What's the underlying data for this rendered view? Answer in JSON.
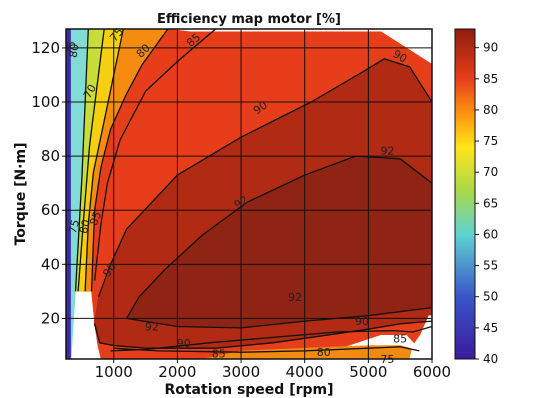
{
  "chart_data": {
    "type": "heatmap",
    "title": "Efficiency map motor [%]",
    "xlabel": "Rotation speed [rpm]",
    "ylabel": "Torque [N·m]",
    "xlim": [
      250,
      6000
    ],
    "ylim": [
      5,
      127
    ],
    "x_ticks": [
      1000,
      2000,
      3000,
      4000,
      5000,
      6000
    ],
    "y_ticks": [
      20,
      40,
      60,
      80,
      100,
      120
    ],
    "grid": true,
    "colorbar": {
      "range": [
        40,
        93
      ],
      "ticks": [
        40,
        45,
        50,
        55,
        60,
        65,
        70,
        75,
        80,
        85,
        90
      ],
      "stops": [
        {
          "value": 40,
          "color": "#3b1a9c"
        },
        {
          "value": 50,
          "color": "#3a55c8"
        },
        {
          "value": 60,
          "color": "#5fd3d2"
        },
        {
          "value": 67,
          "color": "#a9d84a"
        },
        {
          "value": 74,
          "color": "#ffe61a"
        },
        {
          "value": 79,
          "color": "#ff9a10"
        },
        {
          "value": 85,
          "color": "#e63e1a"
        },
        {
          "value": 93,
          "color": "#8f1d10"
        }
      ]
    },
    "regions": [
      {
        "level": 45,
        "color": "#3d2aa6",
        "points": [
          [
            250,
            5
          ],
          [
            250,
            127
          ],
          [
            330,
            127
          ],
          [
            330,
            5
          ]
        ]
      },
      {
        "level": 62,
        "color": "#82dcd6",
        "points": [
          [
            330,
            5
          ],
          [
            330,
            127
          ],
          [
            600,
            127
          ],
          [
            500,
            72
          ],
          [
            400,
            30
          ]
        ]
      },
      {
        "level": 70,
        "color": "#c8dd3a",
        "points": [
          [
            400,
            30
          ],
          [
            500,
            72
          ],
          [
            600,
            127
          ],
          [
            850,
            127
          ],
          [
            620,
            84
          ],
          [
            520,
            55
          ],
          [
            440,
            30
          ]
        ]
      },
      {
        "level": 77,
        "color": "#f5cf10",
        "points": [
          [
            440,
            30
          ],
          [
            520,
            55
          ],
          [
            620,
            84
          ],
          [
            850,
            127
          ],
          [
            1150,
            127
          ],
          [
            840,
            92
          ],
          [
            680,
            74
          ],
          [
            600,
            55
          ],
          [
            550,
            30
          ]
        ]
      },
      {
        "level": 82,
        "color": "#f58c10",
        "points": [
          [
            550,
            30
          ],
          [
            600,
            55
          ],
          [
            680,
            74
          ],
          [
            840,
            92
          ],
          [
            1150,
            127
          ],
          [
            1850,
            127
          ],
          [
            1450,
            114
          ],
          [
            1200,
            103
          ],
          [
            950,
            90
          ],
          [
            800,
            76
          ],
          [
            700,
            60
          ],
          [
            650,
            30
          ]
        ]
      },
      {
        "level": 87,
        "color": "#e63e1a",
        "points": [
          [
            650,
            30
          ],
          [
            700,
            60
          ],
          [
            800,
            76
          ],
          [
            950,
            90
          ],
          [
            1200,
            103
          ],
          [
            1450,
            114
          ],
          [
            1850,
            127
          ],
          [
            2200,
            126
          ],
          [
            4100,
            126
          ],
          [
            4700,
            126
          ],
          [
            5200,
            126
          ],
          [
            5600,
            120
          ],
          [
            6000,
            114
          ],
          [
            6000,
            5
          ],
          [
            5950,
            5
          ],
          [
            5600,
            14
          ],
          [
            5200,
            14
          ],
          [
            4300,
            7
          ],
          [
            3000,
            5
          ],
          [
            800,
            5
          ],
          [
            750,
            10
          ],
          [
            700,
            18
          ]
        ]
      },
      {
        "level": 88,
        "color": "#f08a10",
        "points": [
          [
            2400,
            5
          ],
          [
            3000,
            8
          ],
          [
            4000,
            9
          ],
          [
            5000,
            10
          ],
          [
            5500,
            10
          ],
          [
            5950,
            7
          ],
          [
            5950,
            5
          ]
        ]
      },
      {
        "level": 91,
        "color": "#b02a14",
        "points": [
          [
            1000,
            10
          ],
          [
            1500,
            9
          ],
          [
            2600,
            9
          ],
          [
            3500,
            11
          ],
          [
            4400,
            14
          ],
          [
            5000,
            16
          ],
          [
            5500,
            18
          ],
          [
            6000,
            19
          ],
          [
            6000,
            100
          ],
          [
            5650,
            113
          ],
          [
            5250,
            116
          ],
          [
            4900,
            111
          ],
          [
            4100,
            100
          ],
          [
            3000,
            87
          ],
          [
            2000,
            73
          ],
          [
            1200,
            53
          ],
          [
            950,
            40
          ],
          [
            760,
            28
          ],
          [
            690,
            18
          ],
          [
            780,
            11
          ]
        ]
      },
      {
        "level": 92.5,
        "color": "#8f2415",
        "points": [
          [
            1200,
            20
          ],
          [
            2000,
            17
          ],
          [
            3000,
            16.5
          ],
          [
            4000,
            19
          ],
          [
            5000,
            21
          ],
          [
            6000,
            24
          ],
          [
            6000,
            70
          ],
          [
            5500,
            79
          ],
          [
            4800,
            80
          ],
          [
            4000,
            73
          ],
          [
            3100,
            63
          ],
          [
            2400,
            51
          ],
          [
            1800,
            38
          ],
          [
            1400,
            28
          ]
        ]
      },
      {
        "level": 0,
        "color": "#ffffff",
        "points": [
          [
            5650,
            5
          ],
          [
            5700,
            10
          ],
          [
            5820,
            14
          ],
          [
            5950,
            21
          ],
          [
            6000,
            21
          ],
          [
            6000,
            5
          ]
        ]
      }
    ],
    "contours": [
      {
        "level": 80,
        "points": [
          [
            1000,
            9
          ],
          [
            1700,
            8
          ],
          [
            3000,
            7.5
          ],
          [
            4000,
            8
          ],
          [
            5000,
            9
          ],
          [
            5500,
            9.5
          ],
          [
            5800,
            8
          ]
        ]
      },
      {
        "level": 85,
        "points": [
          [
            950,
            8
          ],
          [
            1500,
            8.5
          ],
          [
            2500,
            11
          ],
          [
            3500,
            13
          ],
          [
            4500,
            15
          ],
          [
            5400,
            15.5
          ],
          [
            5700,
            15
          ],
          [
            6000,
            17
          ]
        ]
      },
      {
        "level": 90,
        "points": [
          [
            700,
            18
          ],
          [
            780,
            11
          ],
          [
            1000,
            10
          ],
          [
            1500,
            9
          ],
          [
            2600,
            9
          ],
          [
            3500,
            11
          ],
          [
            4400,
            14
          ],
          [
            5000,
            16
          ],
          [
            5500,
            18
          ],
          [
            6000,
            19
          ]
        ]
      },
      {
        "level": 90,
        "points": [
          [
            760,
            28
          ],
          [
            950,
            40
          ],
          [
            1200,
            53
          ],
          [
            2000,
            73
          ],
          [
            3000,
            87
          ],
          [
            4100,
            100
          ],
          [
            4900,
            111
          ],
          [
            5250,
            116
          ],
          [
            5650,
            113
          ],
          [
            6000,
            100
          ]
        ]
      },
      {
        "level": 92,
        "points": [
          [
            1200,
            20
          ],
          [
            2000,
            17
          ],
          [
            3000,
            16.5
          ],
          [
            4000,
            19
          ],
          [
            5000,
            21
          ],
          [
            6000,
            24
          ]
        ]
      },
      {
        "level": 92,
        "points": [
          [
            1200,
            20
          ],
          [
            1400,
            28
          ],
          [
            1800,
            38
          ],
          [
            2400,
            51
          ],
          [
            3100,
            63
          ],
          [
            4000,
            73
          ],
          [
            4800,
            80
          ],
          [
            5500,
            79
          ],
          [
            6000,
            70
          ]
        ]
      },
      {
        "level": 75,
        "points": [
          [
            400,
            30
          ],
          [
            500,
            72
          ],
          [
            600,
            127
          ]
        ]
      },
      {
        "level": 70,
        "points": [
          [
            440,
            30
          ],
          [
            520,
            55
          ],
          [
            620,
            84
          ],
          [
            850,
            127
          ]
        ]
      },
      {
        "level": 75,
        "points": [
          [
            550,
            30
          ],
          [
            600,
            55
          ],
          [
            680,
            74
          ],
          [
            840,
            92
          ],
          [
            1150,
            127
          ]
        ]
      },
      {
        "level": 80,
        "points": [
          [
            650,
            30
          ],
          [
            700,
            60
          ],
          [
            800,
            76
          ],
          [
            950,
            90
          ],
          [
            1200,
            103
          ],
          [
            1450,
            114
          ],
          [
            1850,
            127
          ]
        ]
      },
      {
        "level": 85,
        "points": [
          [
            700,
            34
          ],
          [
            800,
            55
          ],
          [
            900,
            70
          ],
          [
            1100,
            86
          ],
          [
            1500,
            104
          ],
          [
            2000,
            115
          ],
          [
            2600,
            127
          ]
        ]
      }
    ],
    "contour_labels": [
      {
        "text": "80",
        "x": 370,
        "y": 119,
        "angle": -80
      },
      {
        "text": "75",
        "x": 320,
        "y": 120,
        "angle": -80
      },
      {
        "text": "70",
        "x": 620,
        "y": 104,
        "angle": -60
      },
      {
        "text": "75",
        "x": 1040,
        "y": 125,
        "angle": -50
      },
      {
        "text": "80",
        "x": 1460,
        "y": 119,
        "angle": -45
      },
      {
        "text": "85",
        "x": 2250,
        "y": 123,
        "angle": -40
      },
      {
        "text": "90",
        "x": 3300,
        "y": 98,
        "angle": -35
      },
      {
        "text": "90",
        "x": 5500,
        "y": 117,
        "angle": 30
      },
      {
        "text": "92",
        "x": 5300,
        "y": 82,
        "angle": 0
      },
      {
        "text": "92",
        "x": 3000,
        "y": 63,
        "angle": -32
      },
      {
        "text": "75",
        "x": 370,
        "y": 54,
        "angle": -75
      },
      {
        "text": "80",
        "x": 540,
        "y": 54,
        "angle": -75
      },
      {
        "text": "85",
        "x": 710,
        "y": 57,
        "angle": -70
      },
      {
        "text": "90",
        "x": 930,
        "y": 38,
        "angle": -55
      },
      {
        "text": "92",
        "x": 3850,
        "y": 28,
        "angle": 0
      },
      {
        "text": "92",
        "x": 1600,
        "y": 17,
        "angle": 0
      },
      {
        "text": "90",
        "x": 4900,
        "y": 19,
        "angle": 0
      },
      {
        "text": "90",
        "x": 2100,
        "y": 11,
        "angle": 0
      },
      {
        "text": "85",
        "x": 2650,
        "y": 7,
        "angle": 0
      },
      {
        "text": "85",
        "x": 5500,
        "y": 12.5,
        "angle": 0
      },
      {
        "text": "80",
        "x": 4300,
        "y": 7.5,
        "angle": 0
      },
      {
        "text": "75",
        "x": 5300,
        "y": 5,
        "angle": 0
      }
    ]
  }
}
